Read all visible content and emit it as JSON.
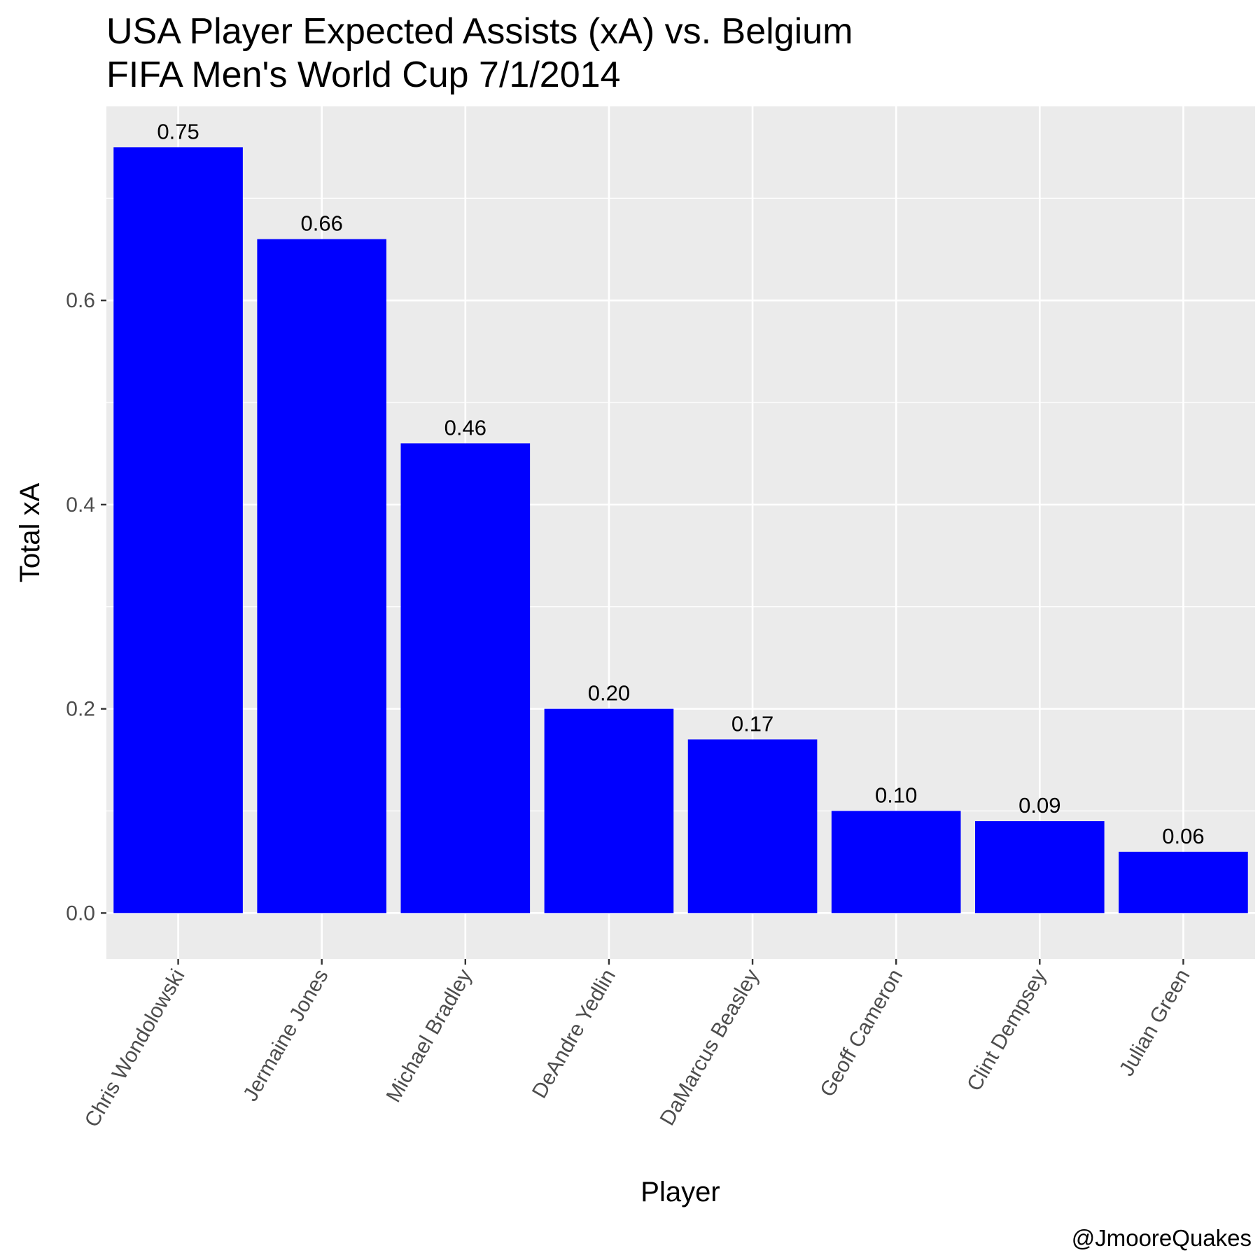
{
  "chart_data": {
    "type": "bar",
    "title": "USA Player Expected Assists (xA) vs. Belgium",
    "subtitle": "FIFA Men's World Cup 7/1/2014",
    "xlabel": "Player",
    "ylabel": "Total xA",
    "caption": "@JmooreQuakes",
    "categories": [
      "Chris Wondolowski",
      "Jermaine Jones",
      "Michael Bradley",
      "DeAndre Yedlin",
      "DaMarcus Beasley",
      "Geoff Cameron",
      "Clint Dempsey",
      "Julian Green"
    ],
    "values": [
      0.75,
      0.66,
      0.46,
      0.2,
      0.17,
      0.1,
      0.09,
      0.06
    ],
    "value_labels": [
      "0.75",
      "0.66",
      "0.46",
      "0.20",
      "0.17",
      "0.10",
      "0.09",
      "0.06"
    ],
    "yticks": [
      0.0,
      0.2,
      0.4,
      0.6
    ],
    "ytick_labels": [
      "0.0",
      "0.2",
      "0.4",
      "0.6"
    ],
    "ylim": [
      -0.045,
      0.79
    ],
    "grid": true,
    "legend": "none",
    "colors": {
      "bar": "#0000ff",
      "panel_background": "#ebebeb",
      "grid": "#ffffff",
      "tick_text": "#4d4d4d"
    }
  }
}
